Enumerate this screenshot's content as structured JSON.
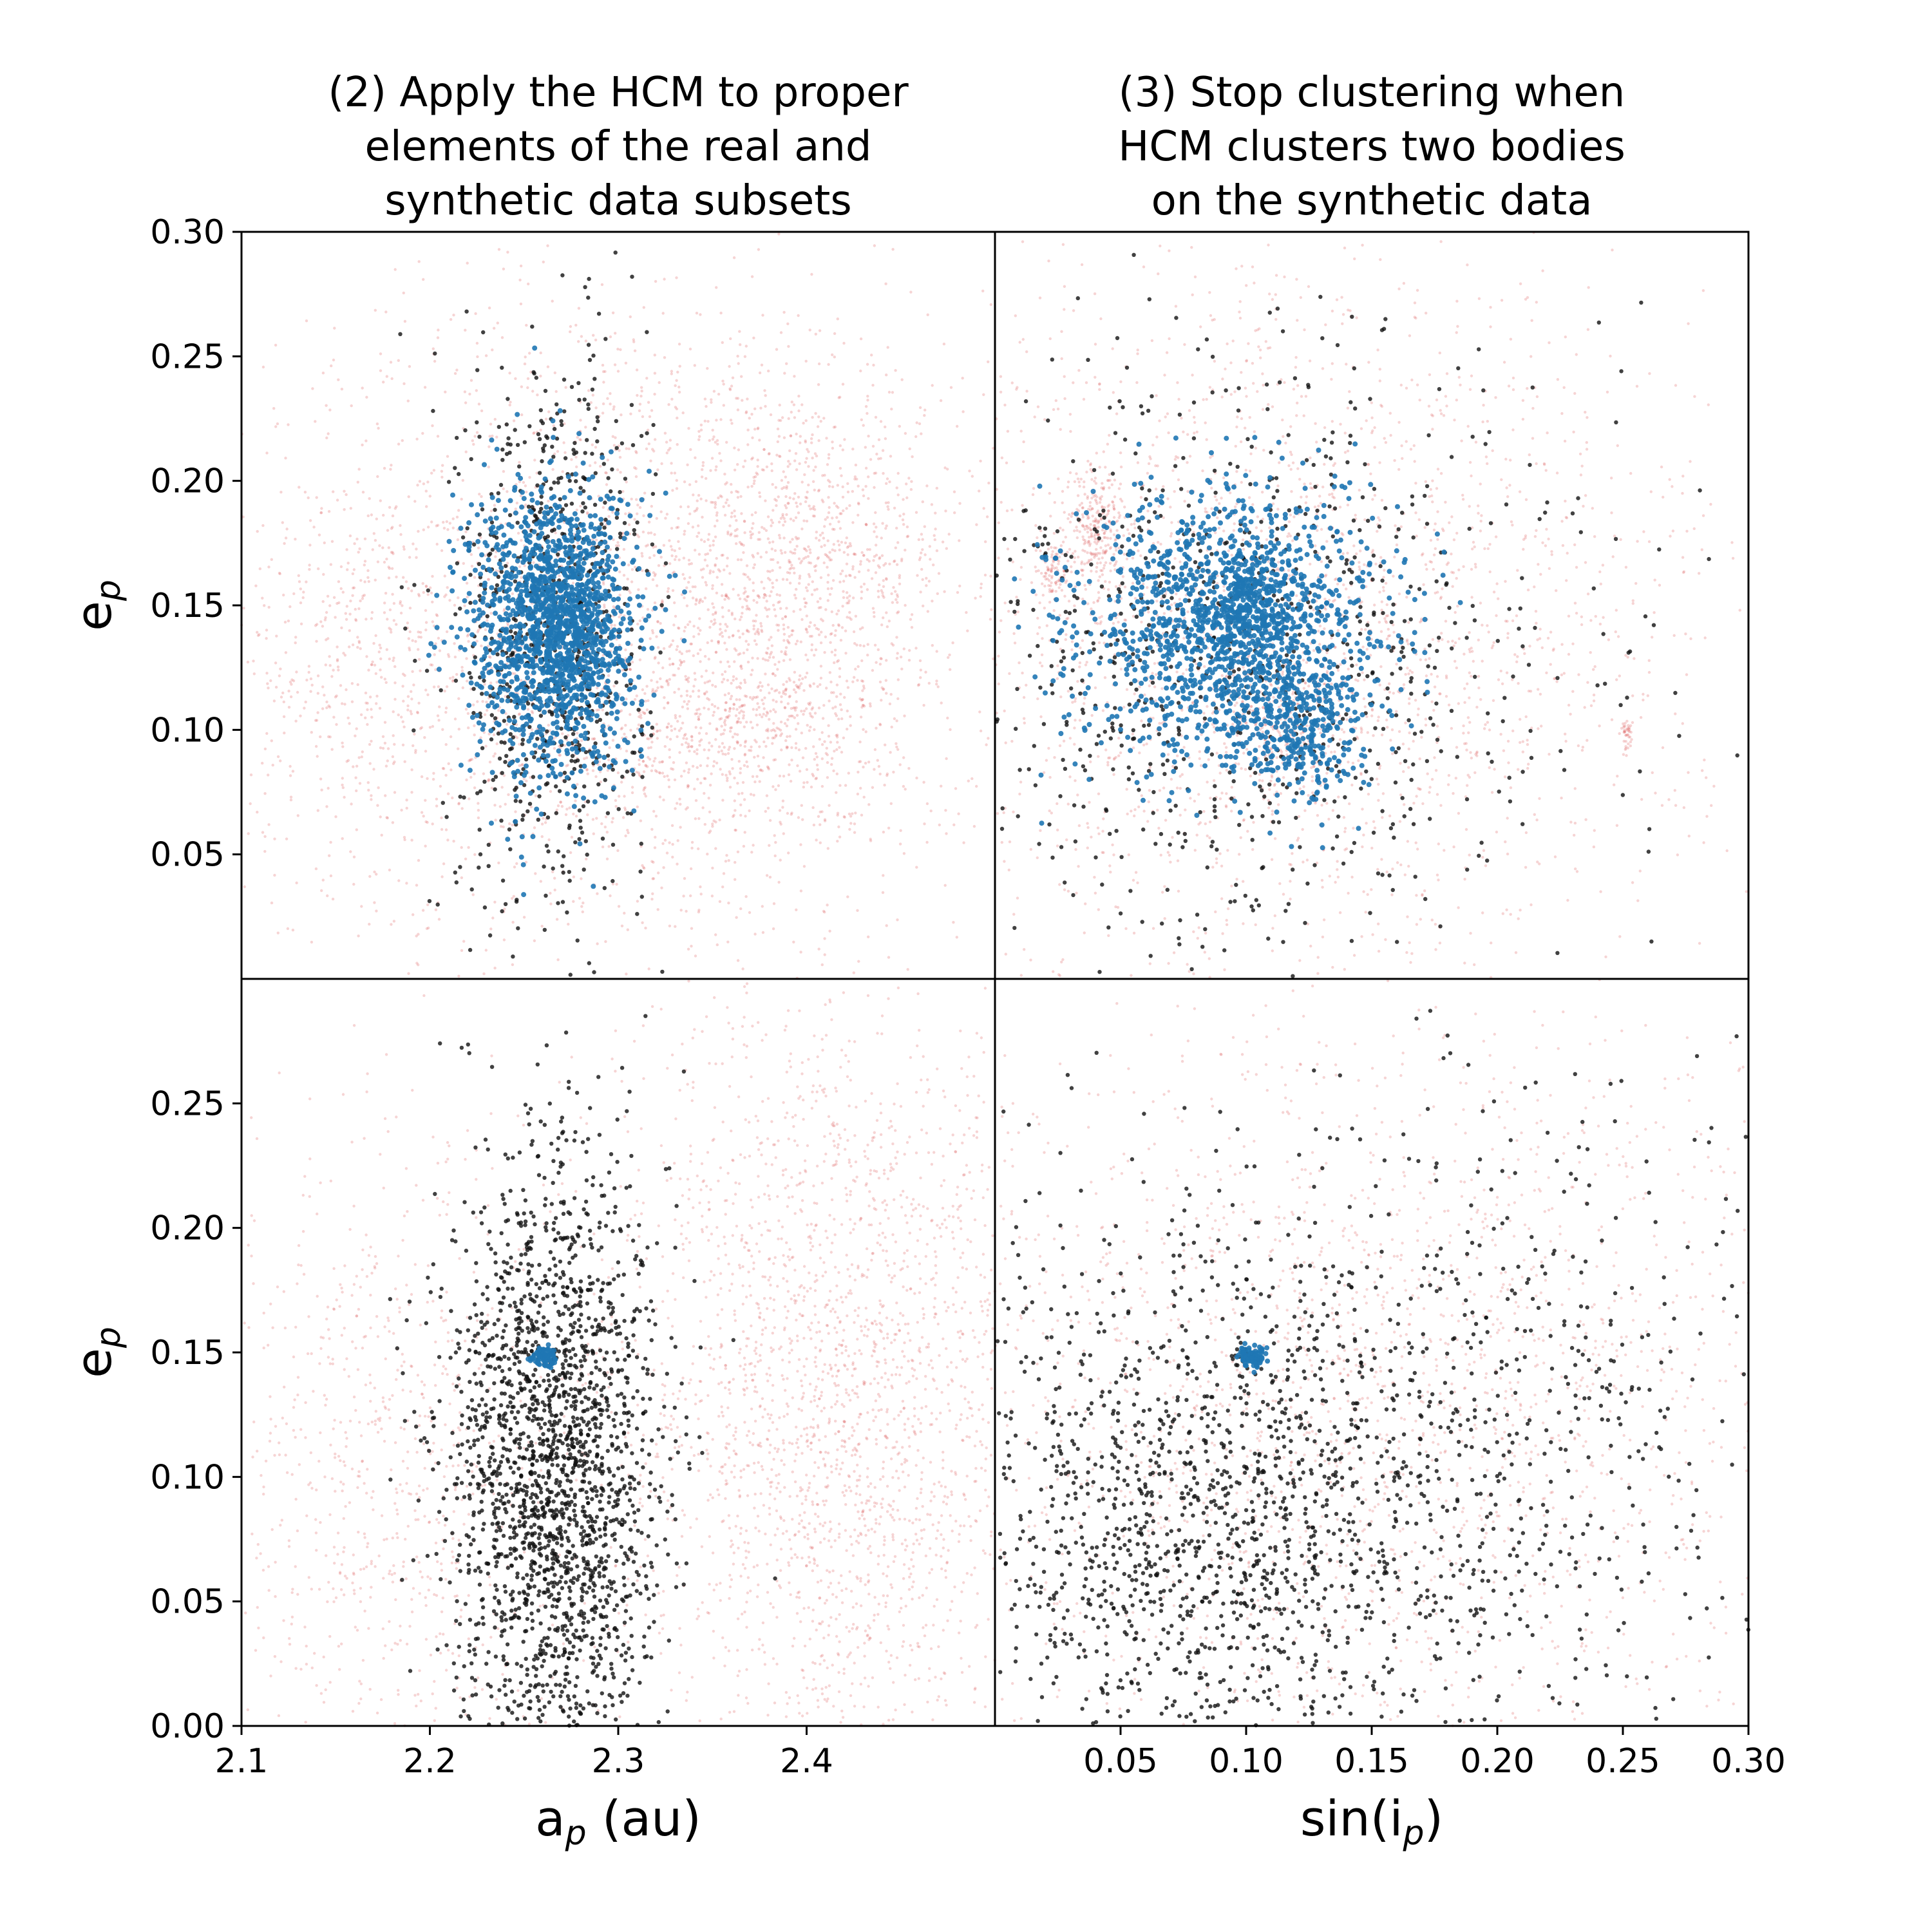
{
  "titles": {
    "left": [
      "(2) Apply the HCM to proper",
      "elements of the real and",
      "synthetic data subsets"
    ],
    "right": [
      "(3) Stop clustering when",
      "HCM clusters two bodies",
      "on the synthetic data"
    ]
  },
  "axes": {
    "ylabel": {
      "main": "e",
      "sub": "p"
    },
    "xlabel_left": {
      "main": "a",
      "sub": "p",
      "suffix": " (au)"
    },
    "xlabel_right": {
      "prefix": "sin(i",
      "sub": "p",
      "suffix": ")"
    }
  },
  "colors": {
    "background_points": "#e06666",
    "real_points": "#111111",
    "cluster_points": "#1f77b4"
  },
  "chart_data": [
    {
      "type": "scatter",
      "panel": "top-left",
      "xlim": [
        2.1,
        2.5
      ],
      "ylim": [
        0.0,
        0.3
      ],
      "xticks": [],
      "yticks": [
        "0.05",
        "0.10",
        "0.15",
        "0.20",
        "0.25",
        "0.30"
      ],
      "series": [
        {
          "role": "background",
          "clusters": [
            {
              "cx": 2.3,
              "cy": 0.14,
              "sx": 0.1,
              "sy": 0.07,
              "n": 2600
            },
            {
              "cx": 2.4,
              "cy": 0.17,
              "sx": 0.04,
              "sy": 0.03,
              "n": 700
            },
            {
              "cx": 2.37,
              "cy": 0.1,
              "sx": 0.04,
              "sy": 0.02,
              "n": 500
            },
            {
              "cx": 2.17,
              "cy": 0.12,
              "sx": 0.04,
              "sy": 0.04,
              "n": 300
            }
          ]
        },
        {
          "role": "real",
          "clusters": [
            {
              "cx": 2.265,
              "cy": 0.14,
              "sx": 0.025,
              "sy": 0.055,
              "n": 800
            }
          ]
        },
        {
          "role": "cluster",
          "clusters": [
            {
              "cx": 2.265,
              "cy": 0.14,
              "sx": 0.022,
              "sy": 0.03,
              "n": 1400
            },
            {
              "cx": 2.275,
              "cy": 0.145,
              "sx": 0.012,
              "sy": 0.012,
              "n": 300
            }
          ]
        }
      ]
    },
    {
      "type": "scatter",
      "panel": "top-right",
      "xlim": [
        0.0,
        0.3
      ],
      "ylim": [
        0.0,
        0.3
      ],
      "xticks": [],
      "yticks": [],
      "series": [
        {
          "role": "background",
          "clusters": [
            {
              "cx": 0.12,
              "cy": 0.14,
              "sx": 0.08,
              "sy": 0.07,
              "n": 2400
            },
            {
              "cx": 0.04,
              "cy": 0.18,
              "sx": 0.005,
              "sy": 0.012,
              "n": 250
            },
            {
              "cx": 0.024,
              "cy": 0.163,
              "sx": 0.003,
              "sy": 0.006,
              "n": 90
            },
            {
              "cx": 0.115,
              "cy": 0.1,
              "sx": 0.012,
              "sy": 0.012,
              "n": 250
            },
            {
              "cx": 0.252,
              "cy": 0.098,
              "sx": 0.001,
              "sy": 0.003,
              "n": 40
            }
          ]
        },
        {
          "role": "real",
          "clusters": [
            {
              "cx": 0.1,
              "cy": 0.13,
              "sx": 0.065,
              "sy": 0.06,
              "n": 900
            }
          ]
        },
        {
          "role": "cluster",
          "clusters": [
            {
              "cx": 0.095,
              "cy": 0.14,
              "sx": 0.03,
              "sy": 0.028,
              "n": 1400
            },
            {
              "cx": 0.12,
              "cy": 0.1,
              "sx": 0.012,
              "sy": 0.015,
              "n": 250
            },
            {
              "cx": 0.1,
              "cy": 0.148,
              "sx": 0.01,
              "sy": 0.01,
              "n": 250
            }
          ]
        }
      ]
    },
    {
      "type": "scatter",
      "panel": "bottom-left",
      "xlim": [
        2.1,
        2.5
      ],
      "ylim": [
        0.0,
        0.3
      ],
      "xticks": [
        "2.1",
        "2.2",
        "2.3",
        "2.4"
      ],
      "yticks": [
        "0.00",
        "0.05",
        "0.10",
        "0.15",
        "0.20",
        "0.25"
      ],
      "series": [
        {
          "role": "background",
          "clusters": [
            {
              "cx": 2.42,
              "cy": 0.13,
              "sx": 0.06,
              "sy": 0.08,
              "n": 2500
            },
            {
              "cx": 2.18,
              "cy": 0.1,
              "sx": 0.05,
              "sy": 0.07,
              "n": 800
            }
          ]
        },
        {
          "role": "real",
          "clusters": [
            {
              "cx": 2.265,
              "cy": 0.1,
              "sx": 0.028,
              "sy": 0.065,
              "n": 2200
            }
          ]
        },
        {
          "role": "cluster",
          "clusters": [
            {
              "cx": 2.26,
              "cy": 0.148,
              "sx": 0.003,
              "sy": 0.002,
              "n": 80
            }
          ]
        }
      ]
    },
    {
      "type": "scatter",
      "panel": "bottom-right",
      "xlim": [
        0.0,
        0.3
      ],
      "ylim": [
        0.0,
        0.3
      ],
      "xticks": [
        "0.05",
        "0.10",
        "0.15",
        "0.20",
        "0.25",
        "0.30"
      ],
      "yticks": [],
      "series": [
        {
          "role": "background",
          "clusters": [
            {
              "cx": 0.15,
              "cy": 0.13,
              "sx": 0.09,
              "sy": 0.08,
              "n": 2200
            }
          ]
        },
        {
          "role": "real",
          "clusters": [
            {
              "cx": 0.08,
              "cy": 0.08,
              "sx": 0.055,
              "sy": 0.055,
              "n": 1400
            },
            {
              "cx": 0.18,
              "cy": 0.12,
              "sx": 0.07,
              "sy": 0.07,
              "n": 700
            }
          ]
        },
        {
          "role": "cluster",
          "clusters": [
            {
              "cx": 0.103,
              "cy": 0.148,
              "sx": 0.003,
              "sy": 0.002,
              "n": 80
            }
          ]
        }
      ]
    }
  ]
}
